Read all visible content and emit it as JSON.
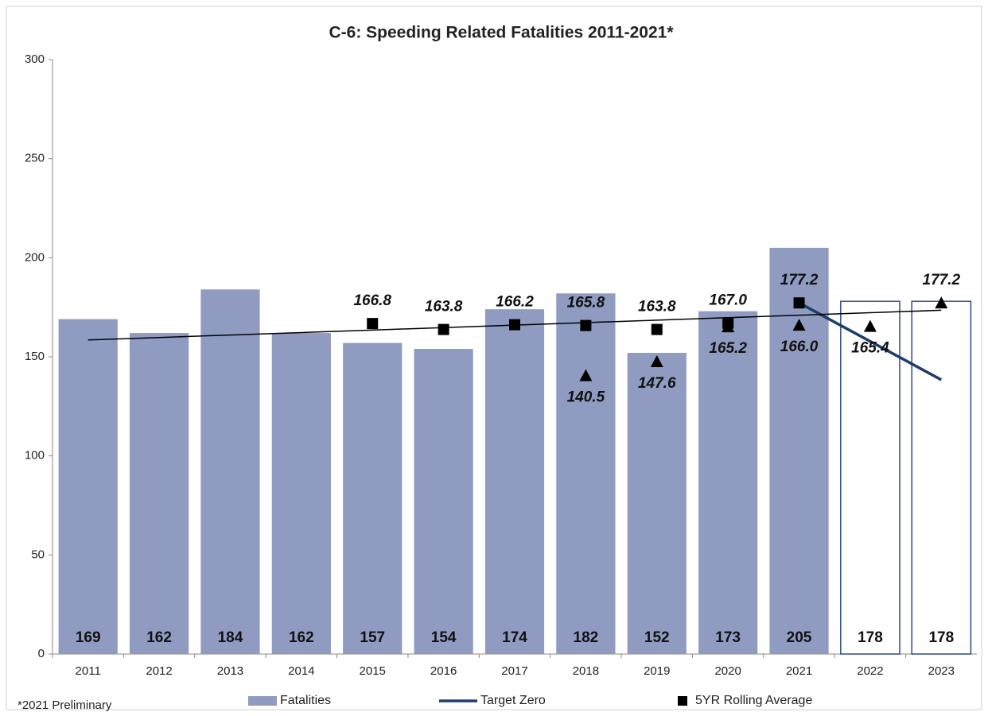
{
  "chart_data": {
    "type": "combo",
    "title": "C-6: Speeding Related Fatalities 2011-2021*",
    "footnote": "*2021 Preliminary",
    "categories": [
      "2011",
      "2012",
      "2013",
      "2014",
      "2015",
      "2016",
      "2017",
      "2018",
      "2019",
      "2020",
      "2021",
      "2022",
      "2023"
    ],
    "ylim": [
      0,
      300
    ],
    "yticks": [
      0,
      50,
      100,
      150,
      200,
      250,
      300
    ],
    "grid": false,
    "legend": "bottom",
    "series": [
      {
        "name": "Fatalities",
        "kind": "bar",
        "color": "#8f9bc0",
        "values": [
          169,
          162,
          184,
          162,
          157,
          154,
          174,
          182,
          152,
          173,
          205,
          null,
          null
        ]
      },
      {
        "kind": "bar",
        "color": "#2e4a7d",
        "fill": "none",
        "values": [
          null,
          null,
          null,
          null,
          null,
          null,
          null,
          null,
          null,
          null,
          null,
          178,
          178
        ]
      },
      {
        "name": "Target Zero",
        "kind": "line",
        "color": "#1f3d6f",
        "values": [
          null,
          null,
          null,
          null,
          null,
          null,
          null,
          null,
          null,
          null,
          177.2,
          157.8,
          138.4
        ]
      },
      {
        "name": "5YR Rolling Average",
        "kind": "marker",
        "marker": "square",
        "color": "#000000",
        "values": [
          null,
          null,
          null,
          null,
          166.8,
          163.8,
          166.2,
          165.8,
          163.8,
          167.0,
          177.2,
          null,
          null
        ],
        "value_labels": [
          null,
          null,
          null,
          null,
          "166.8",
          "163.8",
          "166.2",
          "165.8",
          "163.8",
          "167.0",
          "177.2",
          null,
          null
        ]
      },
      {
        "kind": "marker",
        "marker": "triangle",
        "color": "#000000",
        "values": [
          null,
          null,
          null,
          null,
          null,
          null,
          null,
          140.5,
          147.6,
          165.2,
          166.0,
          165.4,
          177.2
        ],
        "value_labels": [
          null,
          null,
          null,
          null,
          null,
          null,
          null,
          "140.5",
          "147.6",
          "165.2",
          "166.0",
          "165.4",
          "177.2"
        ]
      },
      {
        "kind": "line",
        "color": "#000000",
        "thin": true,
        "values": [
          158.5,
          159.75,
          161.0,
          162.25,
          163.5,
          164.75,
          166.0,
          167.25,
          168.5,
          169.75,
          171.0,
          172.25,
          173.5
        ]
      }
    ]
  }
}
